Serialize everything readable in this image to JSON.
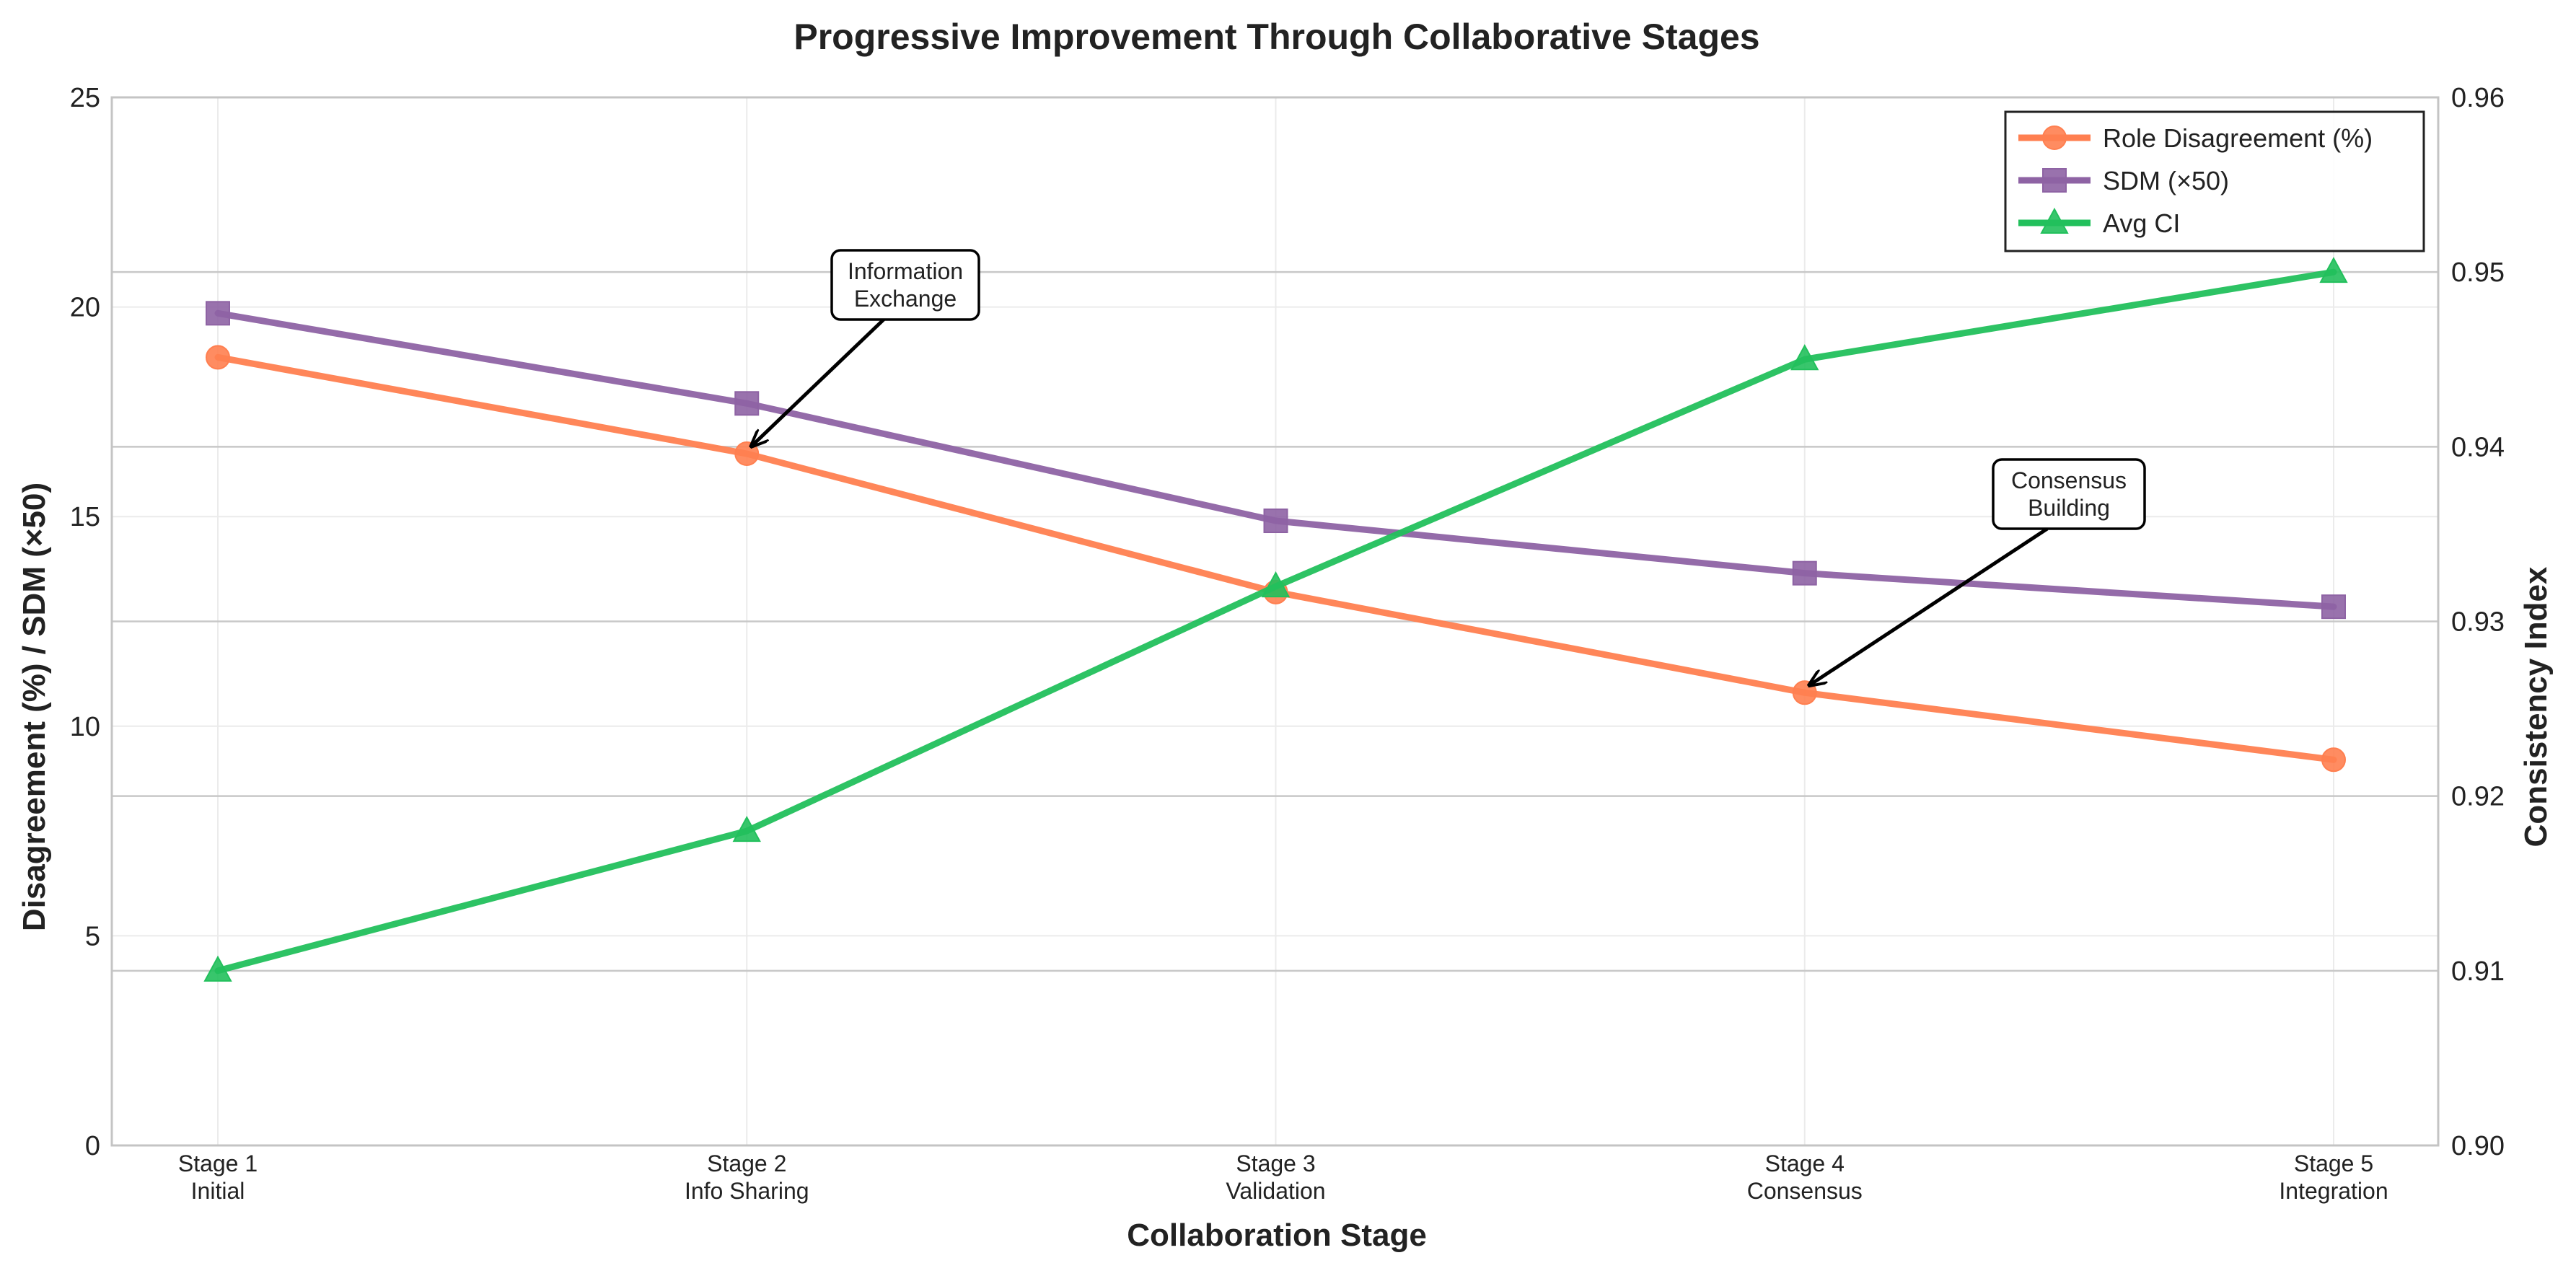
{
  "chart_data": {
    "type": "line",
    "title": "Progressive Improvement Through Collaborative Stages",
    "xlabel": "Collaboration Stage",
    "ylabel_left": "Disagreement (%) / SDM (×50)",
    "ylabel_right": "Consistency Index",
    "categories": [
      [
        "Stage 1",
        "Initial"
      ],
      [
        "Stage 2",
        "Info Sharing"
      ],
      [
        "Stage 3",
        "Validation"
      ],
      [
        "Stage 4",
        "Consensus"
      ],
      [
        "Stage 5",
        "Integration"
      ]
    ],
    "y_left": {
      "min": 0,
      "max": 25,
      "ticks": [
        0,
        5,
        10,
        15,
        20,
        25
      ]
    },
    "y_right": {
      "min": 0.9,
      "max": 0.96,
      "ticks": [
        "0.90",
        "0.91",
        "0.92",
        "0.93",
        "0.94",
        "0.95",
        "0.96"
      ]
    },
    "grid": true,
    "legend_position": "top-right",
    "series": [
      {
        "name": "Role Disagreement (%)",
        "axis": "left",
        "marker": "circle",
        "color": "#FF7F50",
        "values": [
          18.8,
          16.5,
          13.2,
          10.8,
          9.2
        ]
      },
      {
        "name": "SDM (×50)",
        "axis": "left",
        "marker": "square",
        "color": "#8E63A4",
        "values": [
          19.85,
          17.7,
          14.9,
          13.65,
          12.85
        ]
      },
      {
        "name": "Avg CI",
        "axis": "right",
        "marker": "triangle",
        "color": "#22C05C",
        "values": [
          0.91,
          0.918,
          0.932,
          0.945,
          0.95
        ]
      }
    ],
    "annotations": [
      {
        "lines": [
          "Information",
          "Exchange"
        ],
        "target_stage": 1,
        "target_series": 0
      },
      {
        "lines": [
          "Consensus",
          "Building"
        ],
        "target_stage": 3,
        "target_series": 0
      }
    ]
  }
}
